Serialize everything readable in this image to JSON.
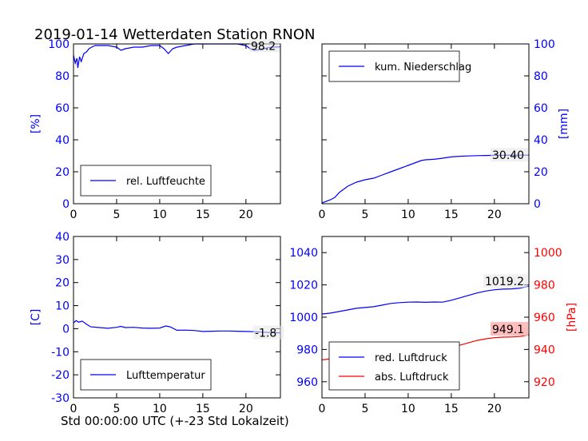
{
  "figure": {
    "title": "2019-01-14 Wetterdaten Station RNON",
    "xlabel": "Std 00:00:00 UTC (+-23 Std Lokalzeit)"
  },
  "colors": {
    "blue": "#0000ff",
    "red": "#ff0000",
    "axis": "#000000",
    "value_box_red": "#ffb6b6"
  },
  "chart_data": [
    {
      "type": "line",
      "panel": "top-left",
      "ylabel": "[%]",
      "ylabel_side": "left",
      "ylabel_color": "#0000ff",
      "xlim": [
        0,
        24
      ],
      "ylim": [
        0,
        100
      ],
      "xticks": [
        0,
        5,
        10,
        15,
        20
      ],
      "yticks": [
        0,
        20,
        40,
        60,
        80,
        100
      ],
      "ytick_color": "#0000ff",
      "legend": "bottom-left",
      "value_label": "98.2",
      "series": [
        {
          "name": "rel. Luftfeuchte",
          "color": "#0000ff",
          "x": [
            0,
            0.2,
            0.4,
            0.5,
            0.7,
            0.9,
            1.2,
            1.5,
            1.8,
            2.1,
            2.5,
            3.0,
            4.0,
            5.0,
            5.5,
            6.0,
            7.0,
            8.0,
            9.0,
            10.0,
            10.5,
            11.0,
            11.5,
            12.0,
            13.0,
            14.0,
            15.0,
            16.0,
            17.0,
            18.0,
            19.0,
            20.0,
            20.5,
            21.0,
            22.0,
            23.0,
            24.0
          ],
          "y": [
            93,
            88,
            91,
            85,
            92,
            89,
            94,
            95,
            97,
            98,
            99,
            99,
            99,
            98,
            96,
            97,
            98,
            98,
            99,
            99,
            97,
            94,
            97,
            98,
            99,
            100,
            100,
            100,
            100,
            100,
            100,
            99,
            97,
            96,
            97,
            98,
            98.2
          ]
        }
      ]
    },
    {
      "type": "line",
      "panel": "top-right",
      "ylabel": "[mm]",
      "ylabel_side": "right",
      "ylabel_color": "#0000ff",
      "xlim": [
        0,
        24
      ],
      "ylim": [
        0,
        100
      ],
      "xticks": [
        0,
        5,
        10,
        15,
        20
      ],
      "yticks": [
        0,
        20,
        40,
        60,
        80,
        100
      ],
      "ytick_color": "#0000ff",
      "legend": "top-left",
      "value_label": "30.40",
      "series": [
        {
          "name": "kum. Niederschlag",
          "color": "#0000ff",
          "x": [
            0,
            1,
            1.5,
            2,
            2.5,
            3,
            4,
            5,
            6,
            7,
            8,
            9,
            10,
            11,
            11.5,
            12,
            13,
            14,
            15,
            16,
            17,
            18,
            19,
            20,
            21,
            22,
            23,
            24
          ],
          "y": [
            0.5,
            2.5,
            4,
            7,
            9,
            11,
            13.5,
            15,
            16,
            18,
            20,
            22,
            24,
            26,
            27,
            27.5,
            27.8,
            28.5,
            29.3,
            29.7,
            29.9,
            30.1,
            30.2,
            30.3,
            30.35,
            30.38,
            30.4,
            30.4
          ]
        }
      ]
    },
    {
      "type": "line",
      "panel": "bottom-left",
      "ylabel": "[C]",
      "ylabel_side": "left",
      "ylabel_color": "#0000ff",
      "xlim": [
        0,
        24
      ],
      "ylim": [
        -30,
        40
      ],
      "xticks": [
        0,
        5,
        10,
        15,
        20
      ],
      "yticks": [
        -30,
        -20,
        -10,
        0,
        10,
        20,
        30,
        40
      ],
      "ytick_color": "#0000ff",
      "legend": "bottom-left",
      "value_label": "-1.8",
      "series": [
        {
          "name": "Lufttemperatur",
          "color": "#0000ff",
          "x": [
            0,
            0.3,
            0.6,
            1.0,
            1.5,
            2.0,
            3.0,
            4.0,
            5.0,
            5.5,
            6.0,
            7.0,
            8.0,
            9.0,
            10.0,
            10.7,
            11.2,
            12.0,
            13.0,
            14.0,
            15.0,
            16.0,
            17.0,
            18.0,
            19.0,
            20.0,
            21.0,
            22.0,
            23.0,
            24.0
          ],
          "y": [
            2.5,
            3.5,
            2.8,
            3.3,
            2.0,
            0.8,
            0.5,
            0.2,
            0.6,
            1.0,
            0.5,
            0.6,
            0.3,
            0.2,
            0.3,
            1.2,
            0.8,
            -0.7,
            -0.6,
            -0.8,
            -1.2,
            -1.1,
            -1.0,
            -1.0,
            -1.1,
            -1.2,
            -1.3,
            -1.5,
            -1.7,
            -1.8
          ]
        }
      ]
    },
    {
      "type": "line",
      "panel": "bottom-right",
      "xlim": [
        0,
        24
      ],
      "xticks": [
        0,
        5,
        10,
        15,
        20
      ],
      "ylim_left": [
        950,
        1050
      ],
      "yticks_left": [
        960,
        980,
        1000,
        1020,
        1040
      ],
      "ytick_left_color": "#0000ff",
      "ylim_right": [
        910,
        1010
      ],
      "yticks_right": [
        920,
        940,
        960,
        980,
        1000
      ],
      "ytick_right_color": "#ff0000",
      "ylabel_right": "[hPa]",
      "ylabel_right_color": "#ff0000",
      "legend": "bottom-left",
      "value_label_left": "1019.2",
      "value_label_right": "949.1",
      "series": [
        {
          "name": "red. Luftdruck",
          "color": "#0000ff",
          "axis": "left",
          "x": [
            0,
            1,
            2,
            3,
            4,
            5,
            6,
            7,
            8,
            9,
            10,
            11,
            12,
            13,
            14,
            15,
            16,
            17,
            18,
            19,
            20,
            21,
            22,
            23,
            24
          ],
          "y": [
            1002,
            1002.5,
            1003.5,
            1004.5,
            1005.5,
            1006,
            1006.5,
            1007.5,
            1008.5,
            1009,
            1009.3,
            1009.4,
            1009.2,
            1009.4,
            1009.3,
            1010.5,
            1012,
            1013.5,
            1015,
            1016.2,
            1017,
            1017.4,
            1017.5,
            1018,
            1019.2
          ]
        },
        {
          "name": "abs. Luftdruck",
          "color": "#ff0000",
          "axis": "right",
          "x": [
            0,
            1,
            2,
            3,
            4,
            5,
            6,
            7,
            8,
            9,
            10,
            11,
            12,
            13,
            14,
            15,
            16,
            17,
            18,
            19,
            20,
            21,
            22,
            23,
            24
          ],
          "y": [
            933.5,
            934.2,
            935.0,
            935.8,
            936.6,
            937.2,
            937.9,
            938.6,
            939.3,
            939.8,
            940.1,
            940.2,
            940.0,
            940.2,
            940.1,
            941.1,
            942.6,
            944.1,
            945.6,
            946.6,
            947.3,
            947.6,
            947.7,
            948.0,
            949.1
          ]
        }
      ]
    }
  ]
}
